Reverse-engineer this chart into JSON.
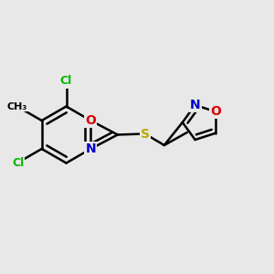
{
  "bg_color": "#e8e8e8",
  "bond_color": "#000000",
  "bond_width": 1.8,
  "atom_colors": {
    "C": "#000000",
    "N": "#0000cc",
    "O": "#dd0000",
    "S": "#bbaa00",
    "Cl": "#00bb00",
    "Me": "#000000"
  },
  "font_size": 10,
  "xlim": [
    -0.5,
    5.5
  ],
  "ylim": [
    -2.2,
    2.2
  ]
}
